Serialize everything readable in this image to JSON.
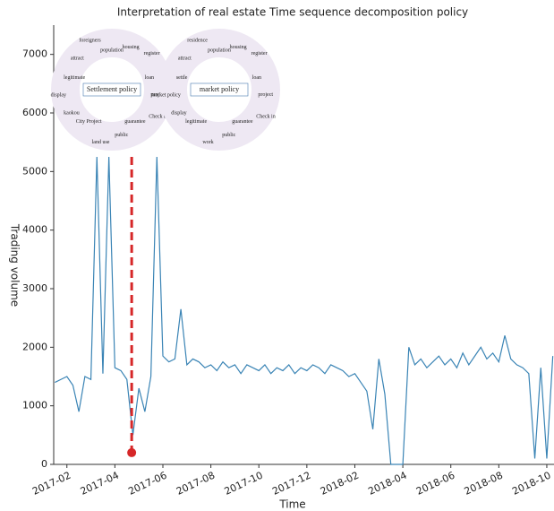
{
  "chart_data": {
    "type": "line",
    "title": "Interpretation of real estate Time sequence decomposition policy",
    "x_label": "Time",
    "y_label": "Trading volume",
    "xlim": [
      0.45,
      21.3
    ],
    "xticks": [
      {
        "value": 1,
        "label": "2017-02"
      },
      {
        "value": 3,
        "label": "2017-04"
      },
      {
        "value": 5,
        "label": "2017-06"
      },
      {
        "value": 7,
        "label": "2017-08"
      },
      {
        "value": 9,
        "label": "2017-10"
      },
      {
        "value": 11,
        "label": "2017-12"
      },
      {
        "value": 13,
        "label": "2018-02"
      },
      {
        "value": 15,
        "label": "2018-04"
      },
      {
        "value": 17,
        "label": "2018-06"
      },
      {
        "value": 19,
        "label": "2018-08"
      },
      {
        "value": 21,
        "label": "2018-10"
      }
    ],
    "ylim": [
      0,
      7500
    ],
    "yticks": [
      0,
      1000,
      2000,
      3000,
      4000,
      5000,
      6000,
      7000
    ],
    "x": [
      0.5,
      0.75,
      1,
      1.25,
      1.5,
      1.75,
      2,
      2.25,
      2.5,
      2.75,
      3,
      3.25,
      3.5,
      3.75,
      4,
      4.25,
      4.5,
      4.75,
      5,
      5.25,
      5.5,
      5.75,
      6,
      6.25,
      6.5,
      6.75,
      7,
      7.25,
      7.5,
      7.75,
      8,
      8.25,
      8.5,
      8.75,
      9,
      9.25,
      9.5,
      9.75,
      10,
      10.25,
      10.5,
      10.75,
      11,
      11.25,
      11.5,
      11.75,
      12,
      12.25,
      12.5,
      12.75,
      13,
      13.25,
      13.5,
      13.75,
      14,
      14.25,
      14.5,
      14.75,
      15,
      15.25,
      15.5,
      15.75,
      16,
      16.25,
      16.5,
      16.75,
      17,
      17.25,
      17.5,
      17.75,
      18,
      18.25,
      18.5,
      18.75,
      19,
      19.25,
      19.5,
      19.75,
      20,
      20.25,
      20.5,
      20.75,
      21,
      21.25
    ],
    "series": [
      {
        "name": "Trading volume",
        "color": "#3a84b5",
        "values": [
          1400,
          1450,
          1500,
          1350,
          900,
          1500,
          1450,
          5250,
          1550,
          5250,
          1650,
          1600,
          1450,
          500,
          1300,
          900,
          1500,
          5250,
          1850,
          1750,
          1800,
          2650,
          1700,
          1800,
          1750,
          1650,
          1700,
          1600,
          1750,
          1650,
          1700,
          1550,
          1700,
          1650,
          1600,
          1700,
          1550,
          1650,
          1600,
          1700,
          1550,
          1650,
          1600,
          1700,
          1650,
          1550,
          1700,
          1650,
          1600,
          1500,
          1550,
          1400,
          1250,
          600,
          1800,
          1200,
          0,
          0,
          0,
          2000,
          1700,
          1800,
          1650,
          1750,
          1850,
          1700,
          1800,
          1650,
          1900,
          1700,
          1850,
          2000,
          1800,
          1900,
          1750,
          2200,
          1800,
          1700,
          1650,
          1550,
          100,
          1650,
          100,
          1850
        ]
      }
    ],
    "marker_line": {
      "x": 3.7,
      "y_top": 5250,
      "y_bottom": 200,
      "color": "#d62728"
    },
    "word_clouds": [
      {
        "center_label": "Settlement policy",
        "words": [
          "population",
          "housing",
          "register",
          "loan",
          "project",
          "Check in",
          "guarantee",
          "public",
          "land use",
          "City Project",
          "kaokou",
          "display",
          "legitimate",
          "attract",
          "foreigners"
        ]
      },
      {
        "center_label": "market policy",
        "words": [
          "population",
          "housing",
          "register",
          "loan",
          "project",
          "Check in",
          "guarantee",
          "public",
          "work",
          "legitimate",
          "display",
          "market policy",
          "settle",
          "attract",
          "residence"
        ]
      }
    ]
  }
}
